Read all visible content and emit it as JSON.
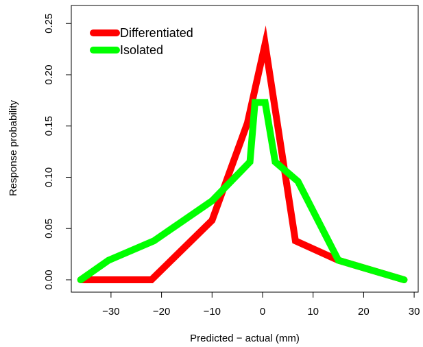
{
  "chart_data": {
    "type": "line",
    "xlabel": "Predicted − actual (mm)",
    "ylabel": "Response probability",
    "xlim": [
      -37,
      30
    ],
    "ylim": [
      -0.005,
      0.265
    ],
    "grid": false,
    "legend_position": "top-left",
    "x_ticks": [
      -30,
      -20,
      -10,
      0,
      10,
      20,
      30
    ],
    "x_tick_labels": [
      "−30",
      "−20",
      "−10",
      "0",
      "10",
      "20",
      "30"
    ],
    "y_ticks": [
      0.0,
      0.05,
      0.1,
      0.15,
      0.2,
      0.25
    ],
    "y_tick_labels": [
      "0.00",
      "0.05",
      "0.10",
      "0.15",
      "0.20",
      "0.25"
    ],
    "series": [
      {
        "name": "Differentiated",
        "color": "#ff0000",
        "x": [
          -36,
          -31,
          -22,
          -10,
          -3,
          0.5,
          6.5,
          15,
          28
        ],
        "y": [
          0.0,
          0.0,
          0.0,
          0.058,
          0.153,
          0.23,
          0.038,
          0.019,
          0.0
        ]
      },
      {
        "name": "Isolated",
        "color": "#00ff00",
        "x": [
          -36,
          -30.5,
          -21.5,
          -10,
          -2.5,
          -1.5,
          0.5,
          2.5,
          7,
          15,
          28
        ],
        "y": [
          0.0,
          0.019,
          0.038,
          0.077,
          0.115,
          0.173,
          0.173,
          0.115,
          0.096,
          0.019,
          0.0
        ]
      }
    ]
  }
}
